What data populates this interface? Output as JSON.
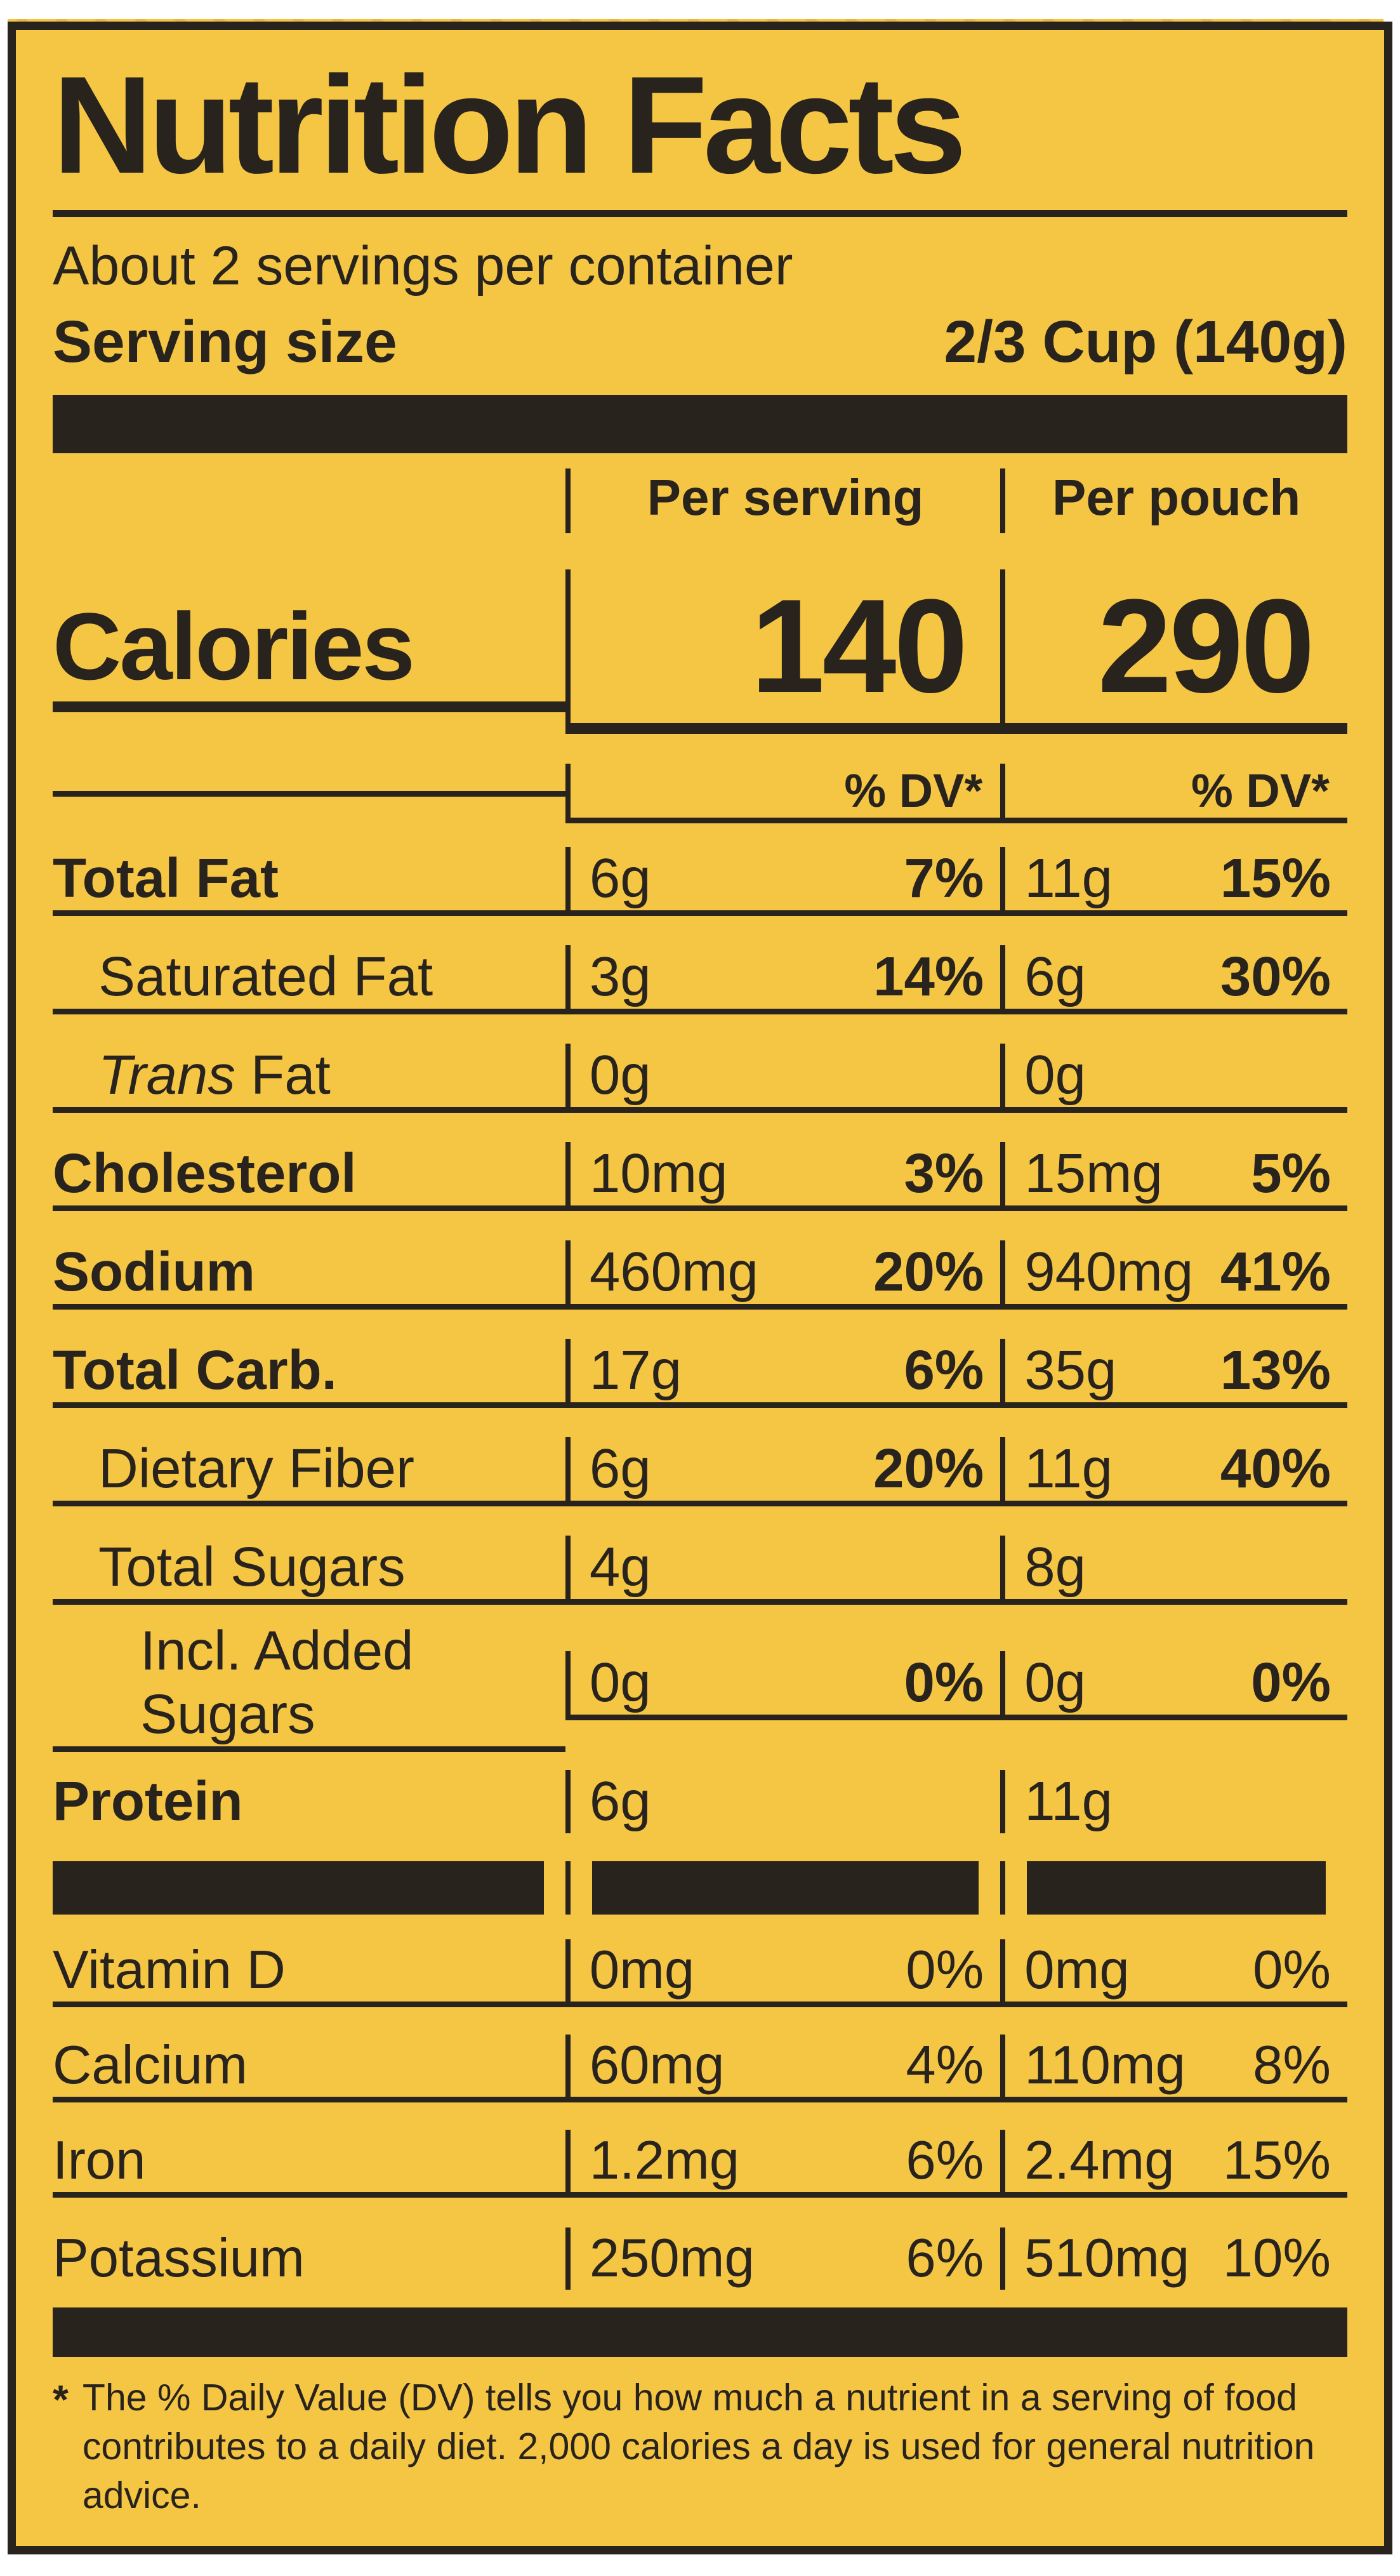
{
  "label": {
    "colors": {
      "yellow": "#f5c644",
      "ink": "#29231d",
      "hatch_orange": "#e9993e"
    },
    "title": "Nutrition Facts",
    "servings_per_container": "About 2 servings per container",
    "serving_size_label": "Serving size",
    "serving_size_value": "2/3 Cup (140g)",
    "col_serving_header": "Per serving",
    "col_pouch_header": "Per pouch",
    "calories_label": "Calories",
    "calories_serving": "140",
    "calories_pouch": "290",
    "dv_header_serving": "% DV*",
    "dv_header_pouch": "% DV*",
    "rows": [
      {
        "name": "Total Fat",
        "serving_amount": "6g",
        "serving_dv": "7%",
        "pouch_amount": "11g",
        "pouch_dv": "15%"
      },
      {
        "name": "Saturated Fat",
        "serving_amount": "3g",
        "serving_dv": "14%",
        "pouch_amount": "6g",
        "pouch_dv": "30%"
      },
      {
        "name_italic": "Trans",
        "name": " Fat",
        "serving_amount": "0g",
        "serving_dv": "",
        "pouch_amount": "0g",
        "pouch_dv": ""
      },
      {
        "name": "Cholesterol",
        "serving_amount": "10mg",
        "serving_dv": "3%",
        "pouch_amount": "15mg",
        "pouch_dv": "5%"
      },
      {
        "name": "Sodium",
        "serving_amount": "460mg",
        "serving_dv": "20%",
        "pouch_amount": "940mg",
        "pouch_dv": "41%"
      },
      {
        "name": "Total Carb.",
        "serving_amount": "17g",
        "serving_dv": "6%",
        "pouch_amount": "35g",
        "pouch_dv": "13%"
      },
      {
        "name": "Dietary Fiber",
        "serving_amount": "6g",
        "serving_dv": "20%",
        "pouch_amount": "11g",
        "pouch_dv": "40%"
      },
      {
        "name": "Total Sugars",
        "serving_amount": "4g",
        "serving_dv": "",
        "pouch_amount": "8g",
        "pouch_dv": ""
      },
      {
        "name": "Incl. Added Sugars",
        "serving_amount": "0g",
        "serving_dv": "0%",
        "pouch_amount": "0g",
        "pouch_dv": "0%"
      },
      {
        "name": "Protein",
        "serving_amount": "6g",
        "serving_dv": "",
        "pouch_amount": "11g",
        "pouch_dv": ""
      }
    ],
    "micronutrients": [
      {
        "name": "Vitamin D",
        "serving_amount": "0mg",
        "serving_dv": "0%",
        "pouch_amount": "0mg",
        "pouch_dv": "0%"
      },
      {
        "name": "Calcium",
        "serving_amount": "60mg",
        "serving_dv": "4%",
        "pouch_amount": "110mg",
        "pouch_dv": "8%"
      },
      {
        "name": "Iron",
        "serving_amount": "1.2mg",
        "serving_dv": "6%",
        "pouch_amount": "2.4mg",
        "pouch_dv": "15%"
      },
      {
        "name": "Potassium",
        "serving_amount": "250mg",
        "serving_dv": "6%",
        "pouch_amount": "510mg",
        "pouch_dv": "10%"
      }
    ],
    "footnote_marker": "*",
    "footnote": "The % Daily Value (DV) tells you how much a nutrient in a serving of food contributes to a daily diet. 2,000 calories a day is used for general nutrition advice."
  }
}
